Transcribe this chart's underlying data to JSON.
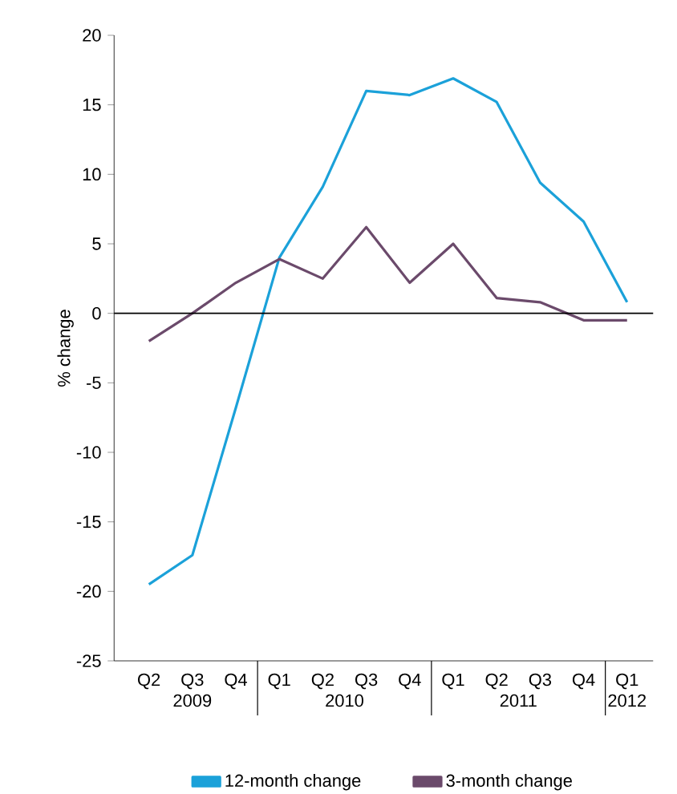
{
  "chart_data": {
    "type": "line",
    "ylabel": "% change",
    "categories": [
      "Q2",
      "Q3",
      "Q4",
      "Q1",
      "Q2",
      "Q3",
      "Q4",
      "Q1",
      "Q2",
      "Q3",
      "Q4",
      "Q1"
    ],
    "series": [
      {
        "name": "12-month change",
        "color": "#1ba1d9",
        "values": [
          -19.5,
          -17.4,
          -6.8,
          4.0,
          9.1,
          16.0,
          15.7,
          16.9,
          15.2,
          9.4,
          6.6,
          0.8
        ]
      },
      {
        "name": "3-month change",
        "color": "#6b4a6b",
        "values": [
          -2.0,
          0.0,
          2.2,
          3.9,
          2.5,
          6.2,
          2.2,
          5.0,
          1.1,
          0.8,
          -0.5,
          -0.5
        ]
      }
    ],
    "annotations": [
      "2009",
      "2010",
      "2011",
      "2012"
    ],
    "ylim": [
      -25,
      20
    ],
    "yticks": [
      -25,
      -20,
      -15,
      -10,
      -5,
      0,
      5,
      10,
      15,
      20
    ],
    "ref_lines": [
      {
        "axis": "y",
        "value": 0,
        "color": "#000000"
      }
    ],
    "grid": false,
    "legend": "bottom",
    "marker": "none",
    "line_style": "solid"
  }
}
